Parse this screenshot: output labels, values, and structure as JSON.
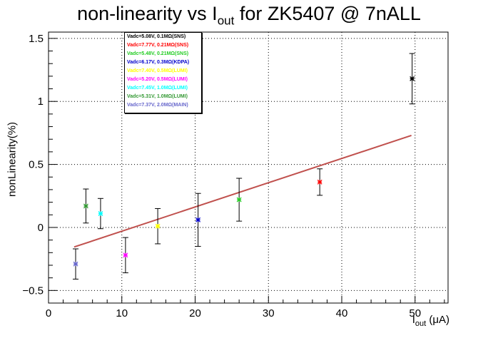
{
  "title_main": "non-linearity vs I",
  "title_sub": "out",
  "title_rest": " for ZK5407 @ 7nALL",
  "chart_data": {
    "type": "scatter",
    "title": "non-linearity vs Iout for ZK5407 @ 7nALL",
    "xlabel": "Iout (μA)",
    "xlabel_main": "I",
    "xlabel_sub": "out",
    "xlabel_rest": " (μA)",
    "ylabel": "nonLinearity(%)",
    "xlim": [
      0,
      54.5
    ],
    "ylim": [
      -0.6,
      1.55
    ],
    "xticks": [
      0,
      10,
      20,
      30,
      40,
      50
    ],
    "yticks": [
      -0.5,
      0,
      0.5,
      1,
      1.5
    ],
    "ytick_labels": [
      "−0.5",
      "0",
      "0.5",
      "1",
      "1.5"
    ],
    "grid": true,
    "legend_position": "top-left",
    "fit_line": {
      "x": [
        3.5,
        49.5
      ],
      "y": [
        -0.155,
        0.73
      ],
      "color": "#c0504d"
    },
    "series": [
      {
        "name": "Vadc=5.08V, 0.1MΩ(SNS)",
        "color": "#000000",
        "x": 49.6,
        "y": 1.18,
        "yerr": 0.2
      },
      {
        "name": "Vadc=7.77V, 0.21MΩ(SNS)",
        "color": "#ff0000",
        "x": 37.0,
        "y": 0.36,
        "yerr": 0.105
      },
      {
        "name": "Vadc=5.48V, 0.21MΩ(SNS)",
        "color": "#22cc22",
        "x": 26.0,
        "y": 0.22,
        "yerr": 0.17
      },
      {
        "name": "Vadc=6.17V, 0.3MΩ(KDPA)",
        "color": "#0000cc",
        "x": 20.4,
        "y": 0.06,
        "yerr": 0.21
      },
      {
        "name": "Vadc=7.40V, 0.5MΩ(LUMI)",
        "color": "#ffff00",
        "x": 14.9,
        "y": 0.01,
        "yerr": 0.14
      },
      {
        "name": "Vadc=5.20V, 0.5MΩ(LUMI)",
        "color": "#ff00ff",
        "x": 10.5,
        "y": -0.22,
        "yerr": 0.14
      },
      {
        "name": "Vadc=7.45V, 1.0MΩ(LUMI)",
        "color": "#00ffff",
        "x": 7.1,
        "y": 0.11,
        "yerr": 0.12
      },
      {
        "name": "Vadc=5.31V, 1.0MΩ(LUMI)",
        "color": "#339933",
        "x": 5.1,
        "y": 0.17,
        "yerr": 0.135
      },
      {
        "name": "Vadc=7.37V, 2.0MΩ(MAIN)",
        "color": "#6666cc",
        "x": 3.7,
        "y": -0.29,
        "yerr": 0.12
      }
    ]
  }
}
